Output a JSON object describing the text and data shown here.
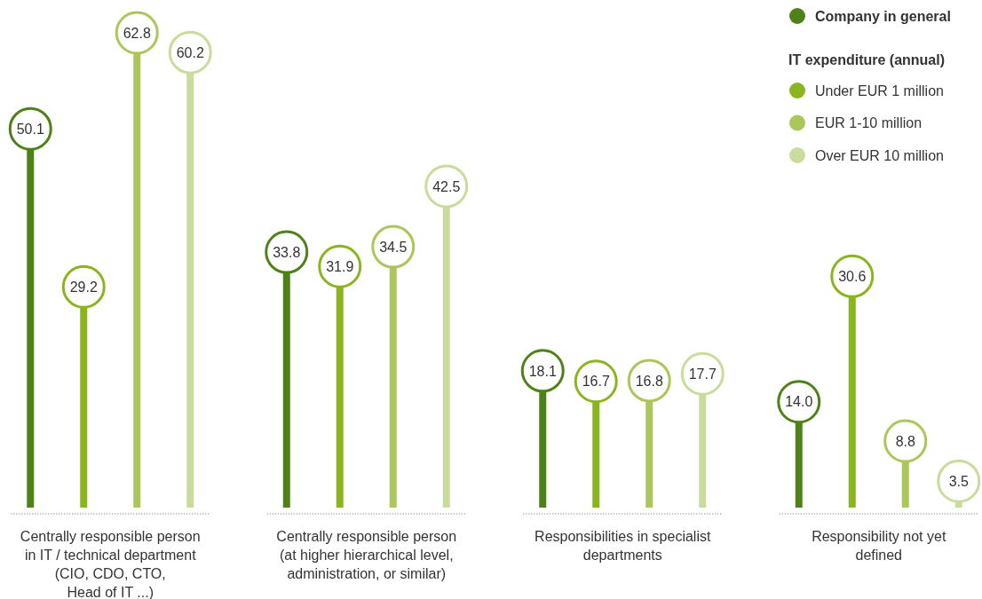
{
  "chart_data": {
    "type": "lollipop",
    "legend_title": "IT expenditure (annual)",
    "categories": [
      "Centrally responsible person\nin IT / technical department\n(CIO, CDO, CTO,\nHead of IT ...)",
      "Centrally responsible person\n(at higher hierarchical level,\nadministration, or similar)",
      "Responsibilities in specialist\ndepartments",
      "Responsibility not yet\ndefined"
    ],
    "series": [
      {
        "name": "Company in general",
        "color": "#4e8219",
        "values": [
          50.1,
          33.8,
          18.1,
          14.0
        ],
        "value_labels": [
          "50.1",
          "33.8",
          "18.1",
          "14.0"
        ]
      },
      {
        "name": "Under EUR 1 million",
        "color": "#8ab51e",
        "values": [
          29.2,
          31.9,
          16.7,
          30.6
        ],
        "value_labels": [
          "29.2",
          "31.9",
          "16.7",
          "30.6"
        ]
      },
      {
        "name": "EUR 1-10 million",
        "color": "#abc75a",
        "values": [
          62.8,
          34.5,
          16.8,
          8.8
        ],
        "value_labels": [
          "62.8",
          "34.5",
          "16.8",
          "8.8"
        ]
      },
      {
        "name": "Over EUR 10 million",
        "color": "#c9dc9c",
        "values": [
          60.2,
          42.5,
          17.7,
          3.5
        ],
        "value_labels": [
          "60.2",
          "42.5",
          "17.7",
          "3.5"
        ]
      }
    ],
    "legend": "top right",
    "tick_labels": "x",
    "marker": "circle"
  }
}
